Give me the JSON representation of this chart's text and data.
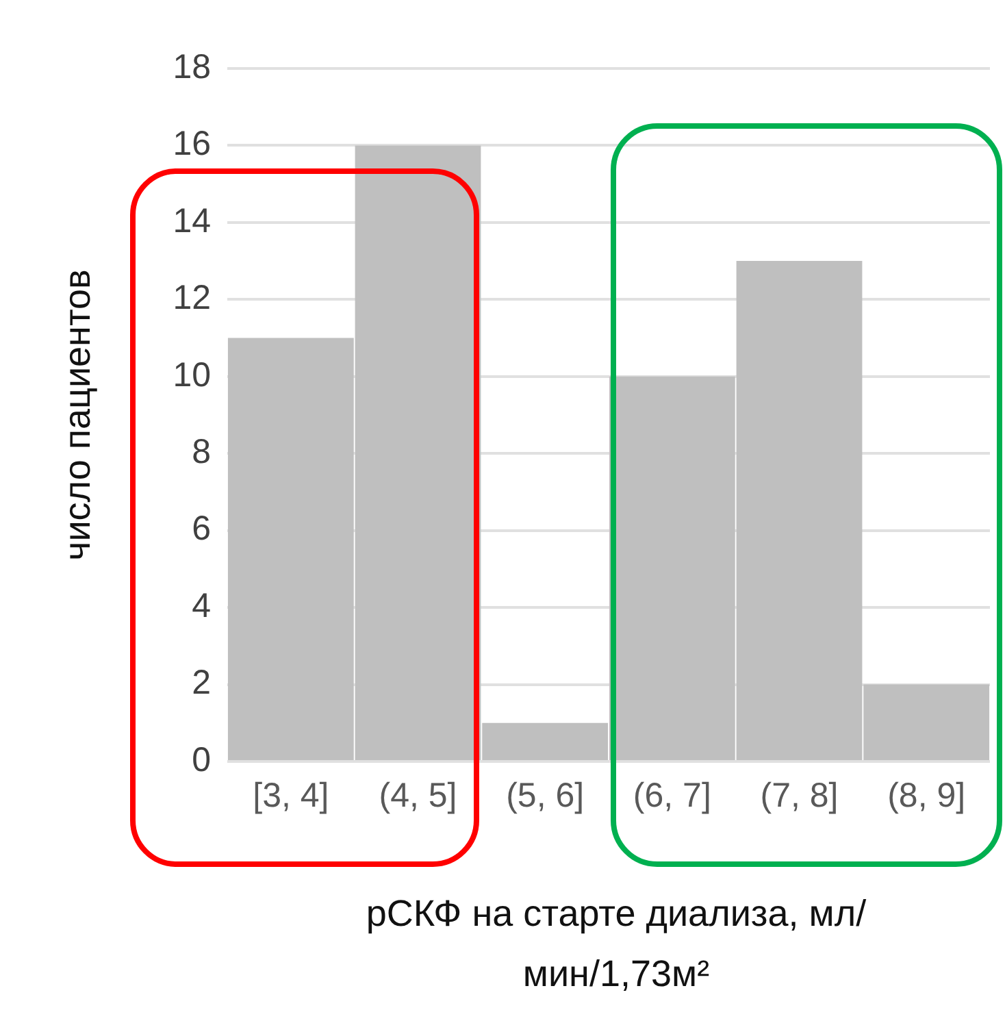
{
  "chart_data": {
    "type": "bar",
    "xlabel": "рСКФ на старте диализа, мл/мин/1,73м²",
    "ylabel": "число пациентов",
    "categories": [
      "[3, 4]",
      "(4, 5]",
      "(5, 6]",
      "(6, 7]",
      "(7, 8]",
      "(8, 9]"
    ],
    "values": [
      11,
      16,
      1,
      10,
      13,
      2
    ],
    "color": "#bfbfbf",
    "ylim": [
      0,
      18
    ],
    "yticks": [
      0,
      2,
      4,
      6,
      8,
      10,
      12,
      14,
      16,
      18
    ],
    "grid": "y",
    "legend": false
  }
}
